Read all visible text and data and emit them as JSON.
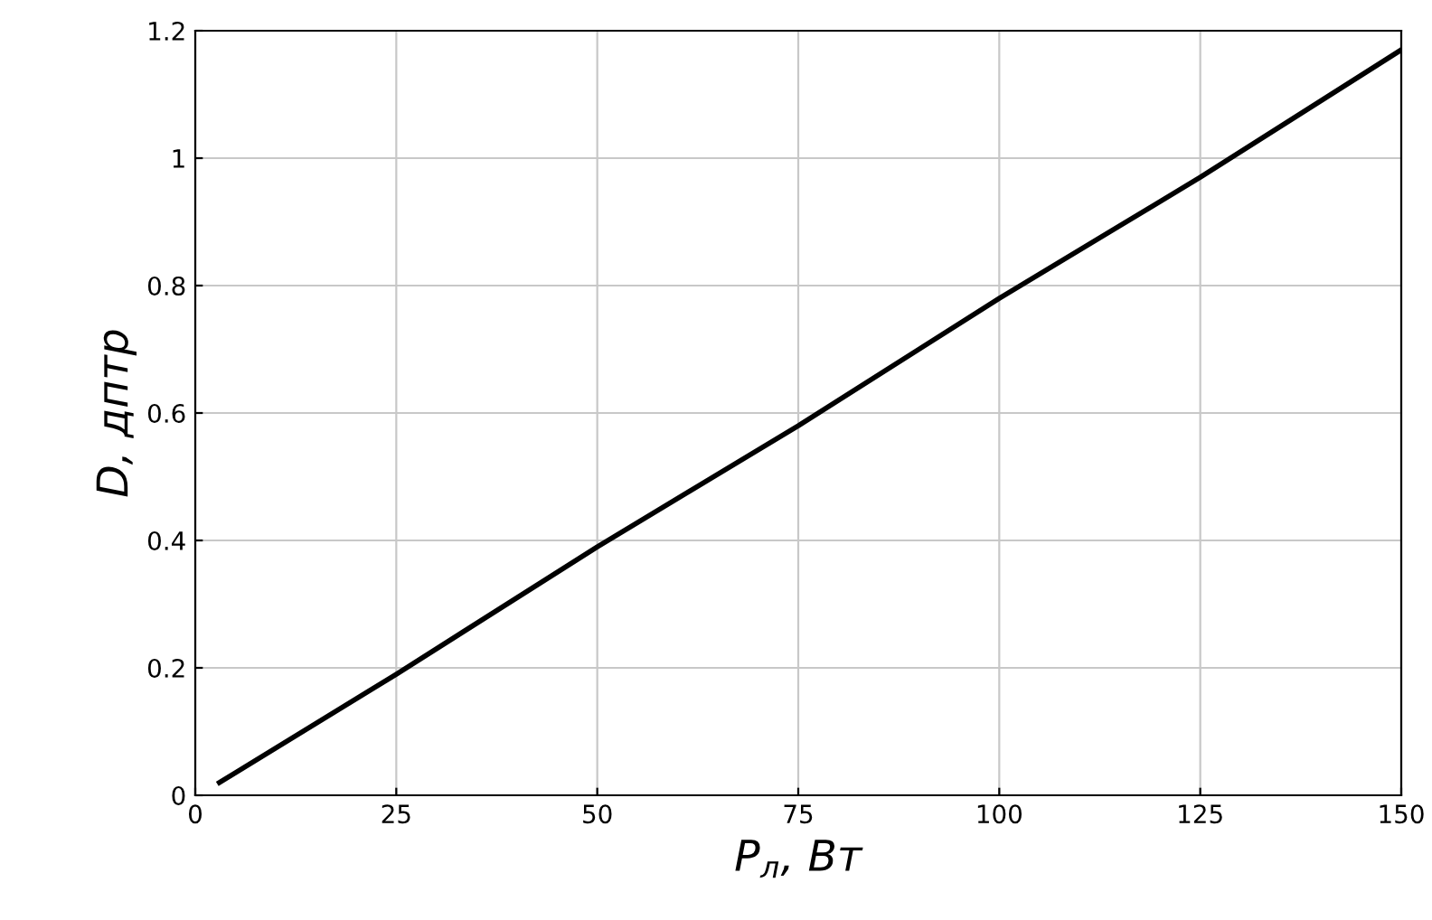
{
  "chart_data": {
    "type": "line",
    "xlabel": "P$_{л}$, Вт",
    "ylabel": "D, дптр",
    "x": [
      3,
      25,
      50,
      75,
      100,
      125,
      150
    ],
    "series": [
      {
        "color": "#000000",
        "values": [
          0.02,
          0.19,
          0.39,
          0.58,
          0.78,
          0.97,
          1.17
        ]
      }
    ],
    "xlim": [
      0,
      150
    ],
    "xticks": [
      0,
      25,
      50,
      75,
      100,
      125,
      150
    ],
    "ylim": [
      0,
      1.2
    ],
    "yticks": [
      0,
      0.2,
      0.4,
      0.6,
      0.8,
      1,
      1.2
    ],
    "grid": true,
    "marker": "none",
    "line_style": "solid"
  }
}
